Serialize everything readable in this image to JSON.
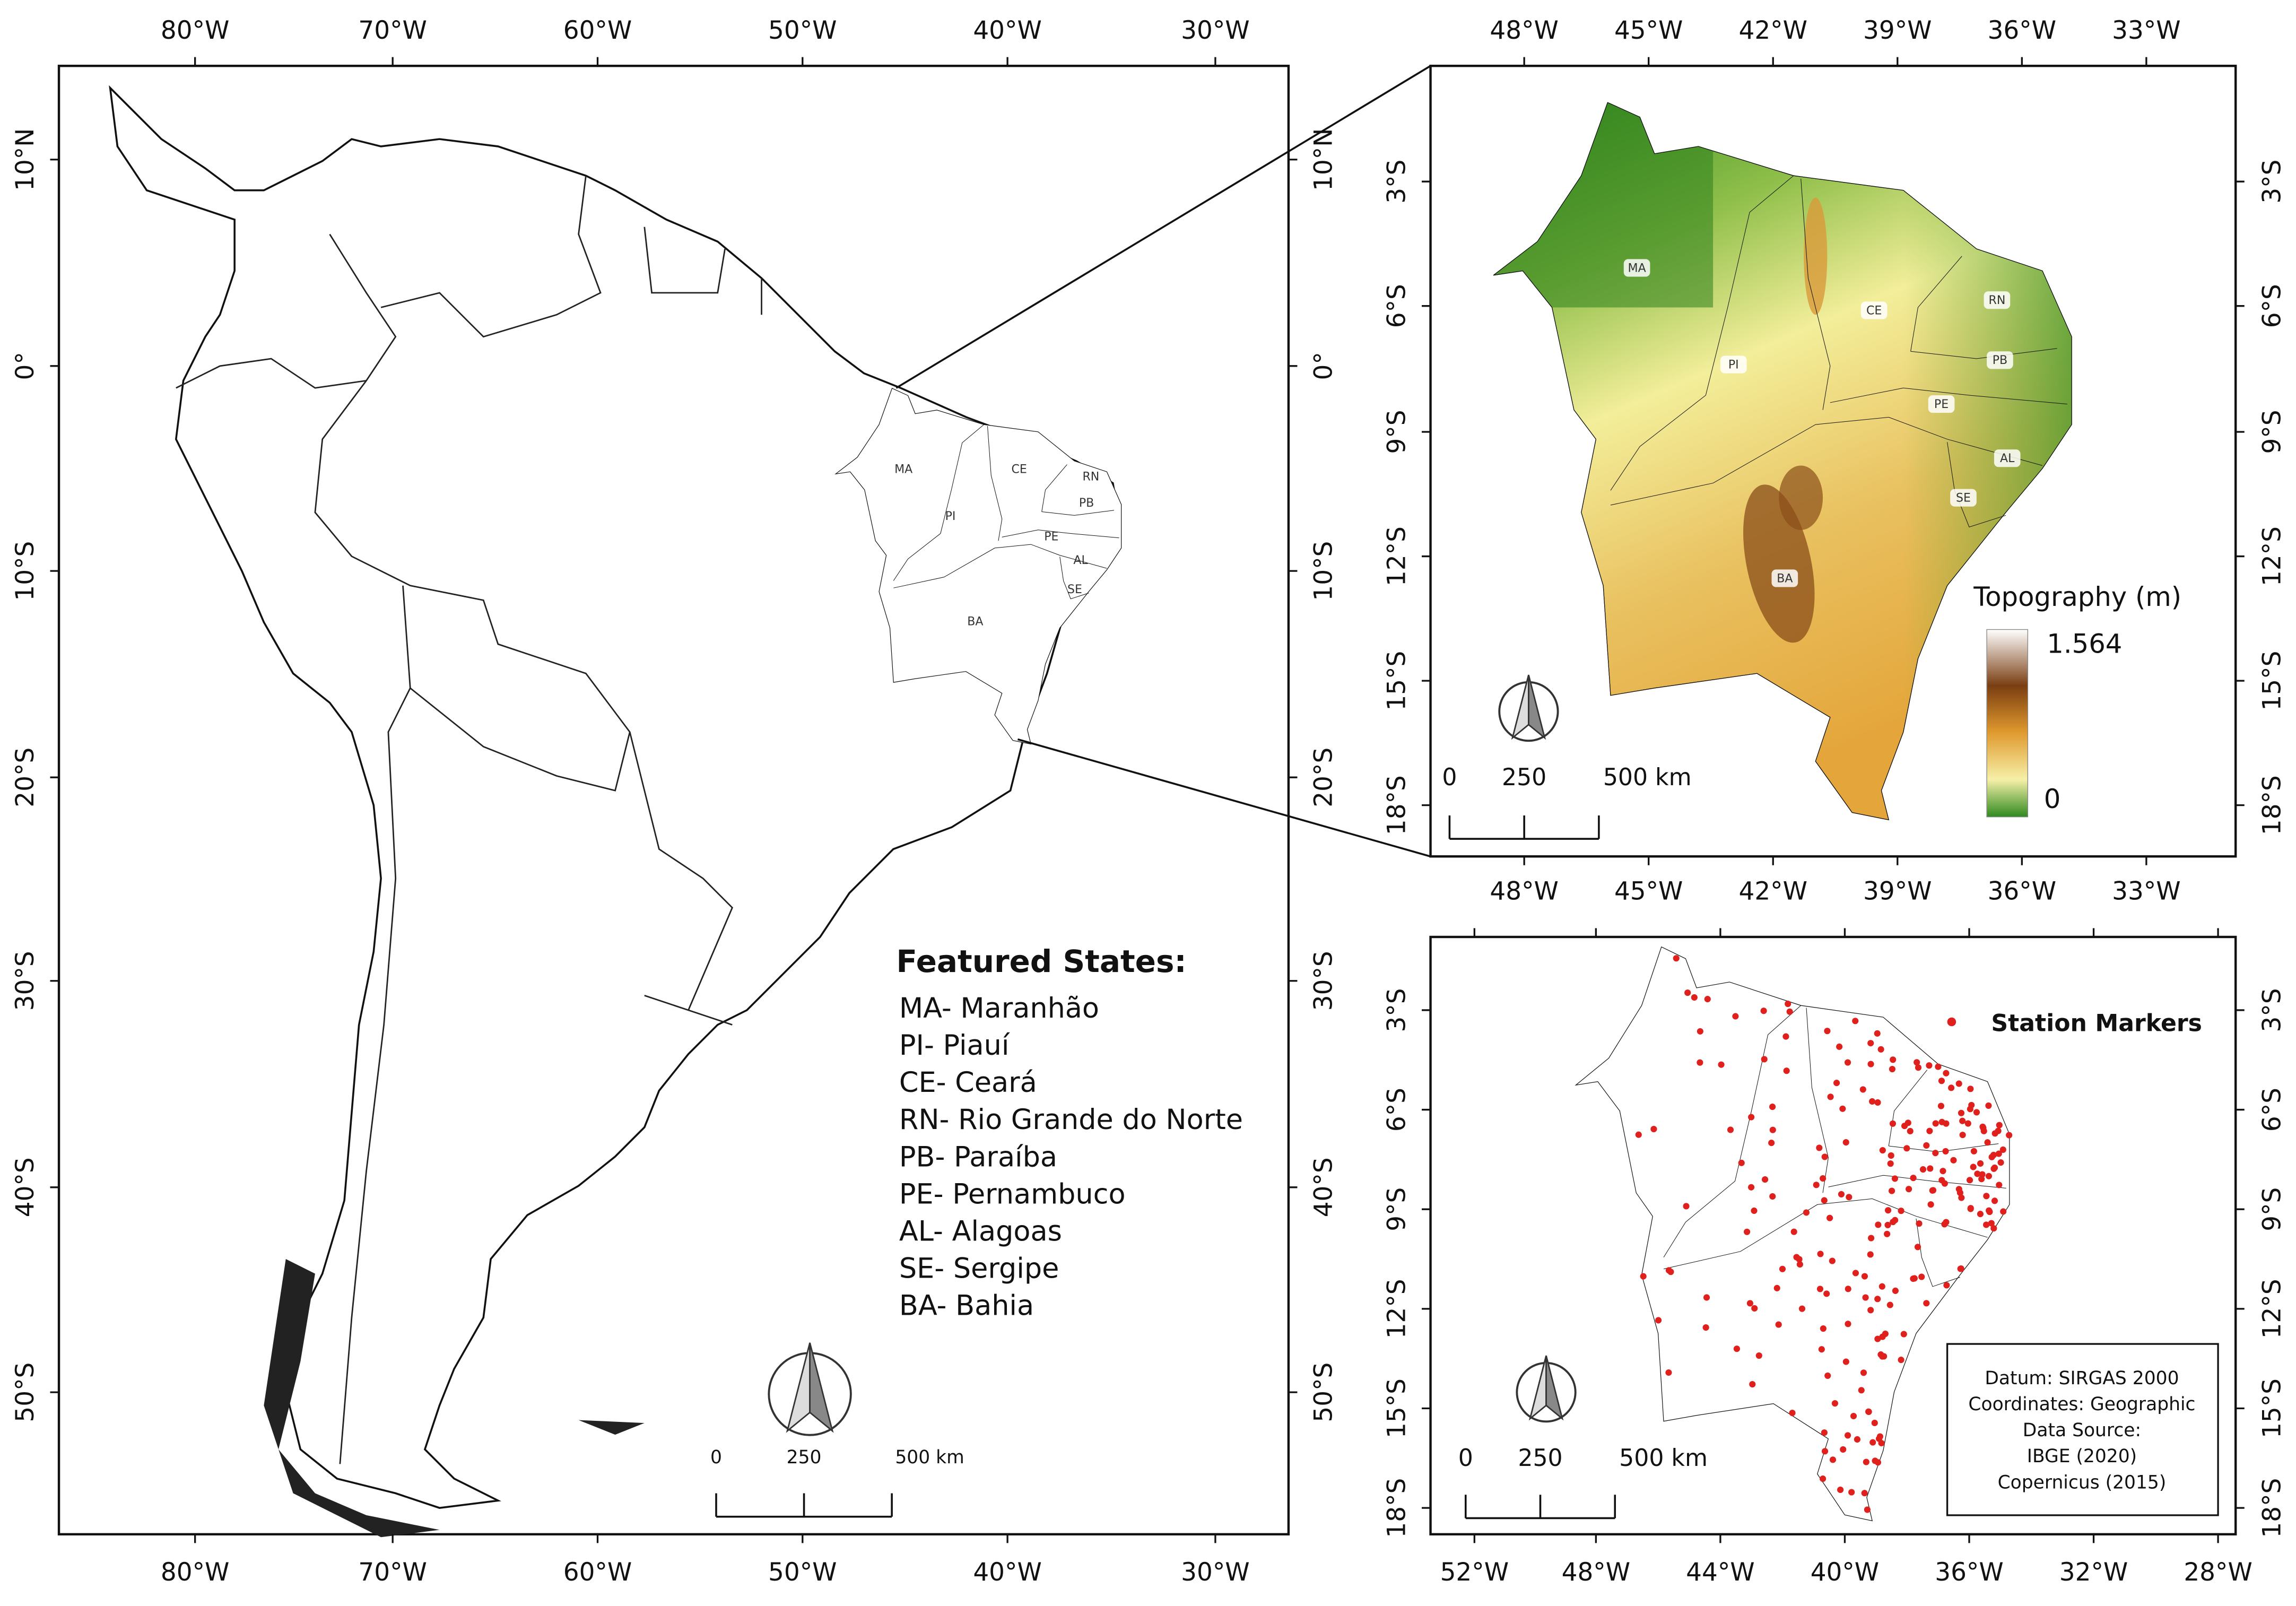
{
  "south_america_map": {
    "top_axis": [
      "80°W",
      "70°W",
      "60°W",
      "50°W",
      "40°W",
      "30°W"
    ],
    "bottom_axis": [
      "80°W",
      "70°W",
      "60°W",
      "50°W",
      "40°W",
      "30°W"
    ],
    "left_axis": [
      "10°N",
      "0°",
      "10°S",
      "20°S",
      "30°S",
      "40°S",
      "50°S"
    ],
    "right_axis": [
      "10°N",
      "0°",
      "10°S",
      "20°S",
      "30°S",
      "40°S",
      "50°S"
    ],
    "state_labels": [
      "MA",
      "PI",
      "CE",
      "RN",
      "PB",
      "PE",
      "AL",
      "SE",
      "BA"
    ],
    "legend": {
      "title": "Featured States:",
      "items": [
        "MA- Maranhão",
        "PI- Piauí",
        "CE- Ceará",
        "RN- Rio Grande do Norte",
        "PB- Paraíba",
        "PE- Pernambuco",
        "AL- Alagoas",
        "SE- Sergipe",
        "BA- Bahia"
      ]
    },
    "scale_bar": [
      "0",
      "250",
      "500 km"
    ]
  },
  "topography_map": {
    "top_axis": [
      "48°W",
      "45°W",
      "42°W",
      "39°W",
      "36°W",
      "33°W"
    ],
    "bottom_axis": [
      "48°W",
      "45°W",
      "42°W",
      "39°W",
      "36°W",
      "33°W"
    ],
    "left_axis": [
      "3°S",
      "6°S",
      "9°S",
      "12°S",
      "15°S",
      "18°S"
    ],
    "right_axis": [
      "3°S",
      "6°S",
      "9°S",
      "12°S",
      "15°S",
      "18°S"
    ],
    "state_labels": [
      "MA",
      "PI",
      "CE",
      "RN",
      "PB",
      "PE",
      "AL",
      "SE",
      "BA"
    ],
    "legend": {
      "title": "Topography (m)",
      "max": "1.564",
      "min": "0"
    },
    "scale_bar": [
      "0",
      "250",
      "500 km"
    ]
  },
  "stations_map": {
    "bottom_axis": [
      "52°W",
      "48°W",
      "44°W",
      "40°W",
      "36°W",
      "32°W",
      "28°W"
    ],
    "left_axis": [
      "3°S",
      "6°S",
      "9°S",
      "12°S",
      "15°S",
      "18°S"
    ],
    "right_axis": [
      "3°S",
      "6°S",
      "9°S",
      "12°S",
      "15°S",
      "18°S"
    ],
    "legend": {
      "title": "Station Markers"
    },
    "info_box": [
      "Datum: SIRGAS 2000",
      "Coordinates: Geographic",
      "Data Source:",
      "IBGE (2020)",
      "Copernicus (2015)"
    ],
    "scale_bar": [
      "0",
      "250",
      "500 km"
    ]
  }
}
